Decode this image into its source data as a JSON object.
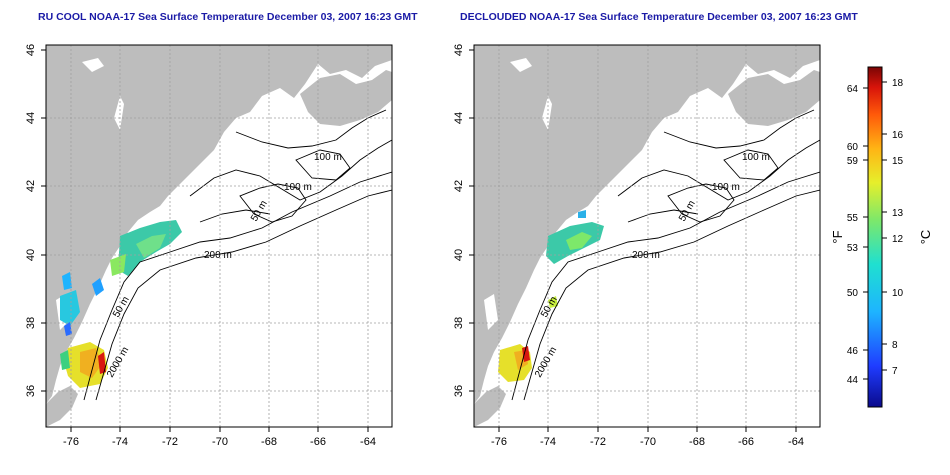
{
  "panels": [
    {
      "title": "RU COOL NOAA-17 Sea Surface Temperature December 03, 2007 16:23 GMT",
      "x_ticks": [
        "-76",
        "-74",
        "-72",
        "-70",
        "-68",
        "-66",
        "-64"
      ],
      "y_ticks": [
        "36",
        "38",
        "40",
        "42",
        "44",
        "46"
      ],
      "contour_labels": [
        "100 m",
        "100 m",
        "50 m",
        "200 m",
        "50 m",
        "2000 m"
      ]
    },
    {
      "title": "DECLOUDED NOAA-17 Sea Surface Temperature December 03, 2007 16:23 GMT",
      "x_ticks": [
        "-76",
        "-74",
        "-72",
        "-70",
        "-68",
        "-66",
        "-64"
      ],
      "y_ticks": [
        "36",
        "38",
        "40",
        "42",
        "44",
        "46"
      ],
      "contour_labels": [
        "100 m",
        "100 m",
        "50 m",
        "200 m",
        "50 m",
        "2000 m"
      ]
    }
  ],
  "colorbar": {
    "f_label": "°F",
    "c_label": "°C",
    "f_ticks": [
      "64",
      "60",
      "59",
      "55",
      "53",
      "50",
      "46",
      "44"
    ],
    "c_ticks": [
      "18",
      "16",
      "15",
      "13",
      "12",
      "10",
      "8",
      "7"
    ]
  },
  "colors": {
    "land": "#bdbdbd",
    "title": "#1a1aa6",
    "contour": "#000000",
    "grid": "#a0a0a0"
  }
}
